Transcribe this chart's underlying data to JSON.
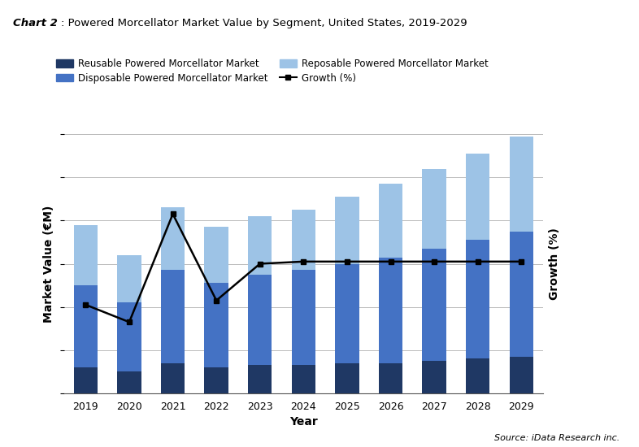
{
  "years": [
    2019,
    2020,
    2021,
    2022,
    2023,
    2024,
    2025,
    2026,
    2027,
    2028,
    2029
  ],
  "reusable": [
    12,
    10,
    14,
    12,
    13,
    13,
    14,
    14,
    15,
    16,
    17
  ],
  "disposable": [
    38,
    32,
    43,
    39,
    42,
    44,
    46,
    49,
    52,
    55,
    58
  ],
  "reposable": [
    28,
    22,
    29,
    26,
    27,
    28,
    31,
    34,
    37,
    40,
    44
  ],
  "growth": [
    -14,
    -22,
    28,
    -12,
    5,
    6,
    6,
    6,
    6,
    6,
    6
  ],
  "color_reusable": "#1f3864",
  "color_disposable": "#4472c4",
  "color_reposable": "#9dc3e6",
  "color_growth_line": "#000000",
  "title_bold": "Chart 2",
  "title_rest": ": Powered Morcellator Market Value by Segment, United States, 2019-2029",
  "ylabel_left": "Market Value (€M)",
  "ylabel_right": "Growth (%)",
  "xlabel": "Year",
  "source": "Source: iData Research inc.",
  "legend_reusable": "Reusable Powered Morcellator Market",
  "legend_disposable": "Disposable Powered Morcellator Market",
  "legend_reposable": "Reposable Powered Morcellator Market",
  "legend_growth": "Growth (%)",
  "background_color": "#ffffff",
  "grid_color": "#b0b0b0",
  "ylim_bars": [
    0,
    120
  ],
  "ylim_growth": [
    -55,
    65
  ],
  "bar_width": 0.55
}
